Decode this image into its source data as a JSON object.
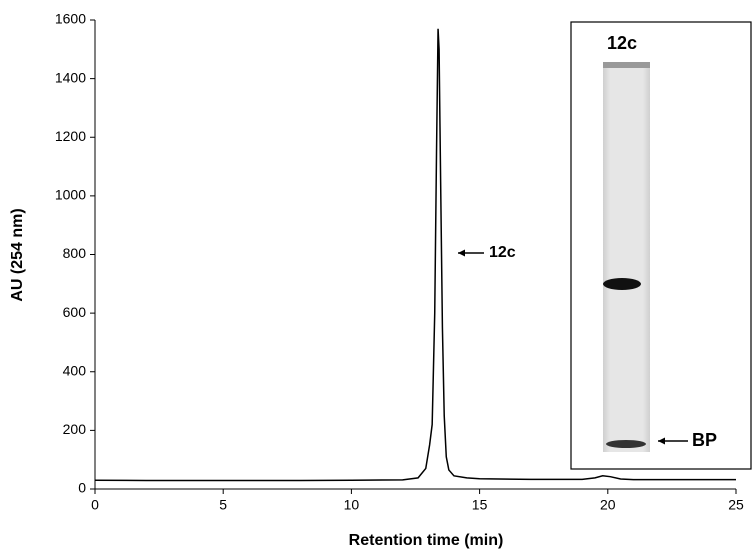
{
  "chart_data": {
    "type": "line",
    "x": [
      0,
      2,
      5,
      8,
      10,
      12,
      12.6,
      12.9,
      13.05,
      13.15,
      13.25,
      13.32,
      13.38,
      13.42,
      13.48,
      13.55,
      13.62,
      13.7,
      13.8,
      14,
      14.5,
      15,
      17,
      19,
      19.5,
      19.8,
      20.1,
      20.5,
      21,
      23,
      25
    ],
    "values": [
      30,
      29,
      29,
      29,
      30,
      31,
      38,
      70,
      150,
      220,
      600,
      1150,
      1570,
      1500,
      1050,
      550,
      250,
      110,
      65,
      45,
      38,
      35,
      33,
      33,
      38,
      45,
      42,
      34,
      32,
      32,
      32
    ],
    "color": "#000000",
    "xlim": [
      0,
      25
    ],
    "xticks": [
      0,
      5,
      10,
      15,
      20,
      25
    ],
    "ylim": [
      0,
      1600
    ],
    "yticks": [
      0,
      200,
      400,
      600,
      800,
      1000,
      1200,
      1400,
      1600
    ],
    "xlabel": "Retention time (min)",
    "ylabel": "AU (254 nm)",
    "annotations": [
      "12c"
    ],
    "inset": {
      "title": "12c",
      "labels": [
        "BP"
      ]
    }
  }
}
